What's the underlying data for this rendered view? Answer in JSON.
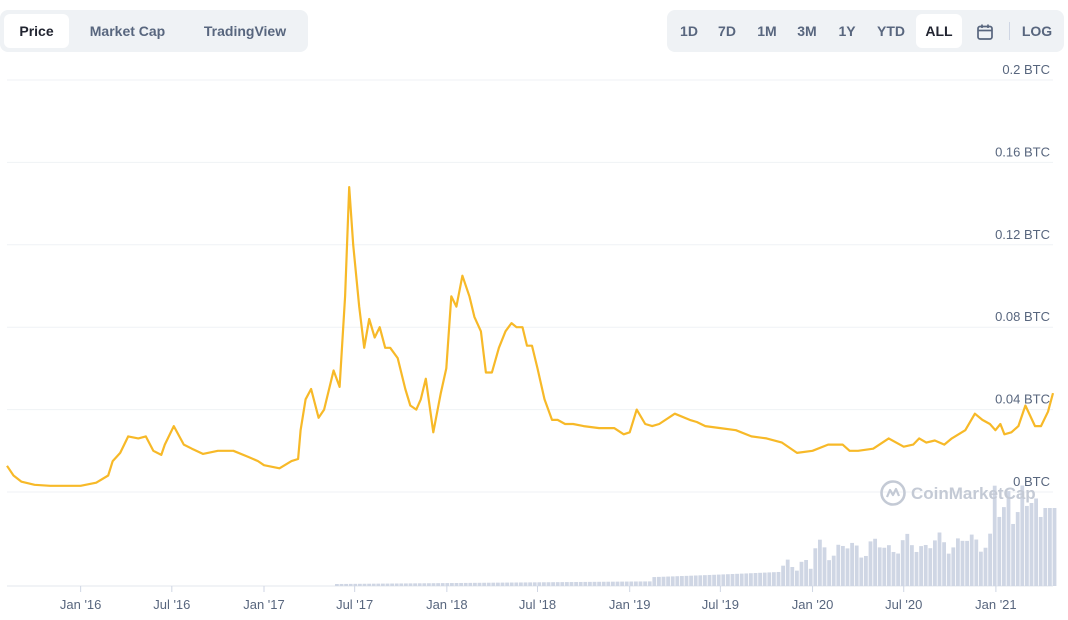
{
  "tabs": [
    "Price",
    "Market Cap",
    "TradingView"
  ],
  "active_tab": "Price",
  "ranges": [
    "1D",
    "7D",
    "1M",
    "3M",
    "1Y",
    "YTD",
    "ALL"
  ],
  "active_range": "ALL",
  "log_label": "LOG",
  "calendar_icon": "calendar-icon",
  "watermark": "CoinMarketCap",
  "colors": {
    "line": "#f7b928",
    "volume": "#cfd6e4",
    "grid": "#eff2f5",
    "text": "#58667e"
  },
  "chart_data": {
    "type": "line",
    "title": "",
    "xlabel": "",
    "ylabel": "",
    "y_unit": "BTC",
    "ylim": [
      0,
      0.2
    ],
    "yticks": [
      0,
      0.04,
      0.08,
      0.12,
      0.16,
      0.2
    ],
    "ytick_labels": [
      "0 BTC",
      "0.04 BTC",
      "0.08 BTC",
      "0.12 BTC",
      "0.16 BTC",
      "0.2 BTC"
    ],
    "xlim": [
      "2015-08-07",
      "2021-04-25"
    ],
    "xticks": [
      "2016-01-01",
      "2016-07-01",
      "2017-01-01",
      "2017-07-01",
      "2018-01-01",
      "2018-07-01",
      "2019-01-01",
      "2019-07-01",
      "2020-01-01",
      "2020-07-01",
      "2021-01-01"
    ],
    "xtick_labels": [
      "Jan '16",
      "Jul '16",
      "Jan '17",
      "Jul '17",
      "Jan '18",
      "Jul '18",
      "Jan '19",
      "Jul '19",
      "Jan '20",
      "Jul '20",
      "Jan '21"
    ],
    "grid": true,
    "series": [
      {
        "x": [
          "2015-08-07",
          "2015-08-20",
          "2015-09-05",
          "2015-10-01",
          "2015-11-01",
          "2015-12-01",
          "2016-01-01",
          "2016-02-01",
          "2016-02-25",
          "2016-03-05",
          "2016-03-20",
          "2016-04-05",
          "2016-04-25",
          "2016-05-10",
          "2016-05-25",
          "2016-06-10",
          "2016-06-17",
          "2016-07-05",
          "2016-07-25",
          "2016-08-10",
          "2016-09-01",
          "2016-10-01",
          "2016-11-01",
          "2016-12-01",
          "2016-12-20",
          "2017-01-01",
          "2017-02-01",
          "2017-02-25",
          "2017-03-10",
          "2017-03-15",
          "2017-03-25",
          "2017-04-05",
          "2017-04-20",
          "2017-05-01",
          "2017-05-20",
          "2017-06-01",
          "2017-06-12",
          "2017-06-20",
          "2017-06-28",
          "2017-07-10",
          "2017-07-20",
          "2017-07-30",
          "2017-08-10",
          "2017-08-20",
          "2017-08-31",
          "2017-09-10",
          "2017-09-25",
          "2017-10-10",
          "2017-10-20",
          "2017-11-01",
          "2017-11-10",
          "2017-11-20",
          "2017-12-05",
          "2017-12-20",
          "2017-12-31",
          "2018-01-10",
          "2018-01-20",
          "2018-02-01",
          "2018-02-15",
          "2018-02-25",
          "2018-03-10",
          "2018-03-20",
          "2018-04-01",
          "2018-04-15",
          "2018-04-28",
          "2018-05-10",
          "2018-05-20",
          "2018-06-01",
          "2018-06-10",
          "2018-06-20",
          "2018-07-01",
          "2018-07-15",
          "2018-07-30",
          "2018-08-10",
          "2018-08-25",
          "2018-09-10",
          "2018-10-01",
          "2018-11-01",
          "2018-12-01",
          "2018-12-20",
          "2019-01-01",
          "2019-01-15",
          "2019-02-01",
          "2019-02-15",
          "2019-03-01",
          "2019-04-01",
          "2019-05-01",
          "2019-05-15",
          "2019-06-01",
          "2019-07-01",
          "2019-08-01",
          "2019-09-01",
          "2019-10-01",
          "2019-11-01",
          "2019-12-01",
          "2020-01-01",
          "2020-02-01",
          "2020-03-01",
          "2020-03-15",
          "2020-04-01",
          "2020-05-01",
          "2020-06-01",
          "2020-07-01",
          "2020-07-20",
          "2020-08-01",
          "2020-08-15",
          "2020-09-01",
          "2020-09-20",
          "2020-10-05",
          "2020-11-01",
          "2020-11-20",
          "2020-12-05",
          "2020-12-20",
          "2020-12-31",
          "2021-01-10",
          "2021-01-18",
          "2021-02-01",
          "2021-02-15",
          "2021-03-01",
          "2021-03-20",
          "2021-04-01",
          "2021-04-15",
          "2021-04-25"
        ],
        "y": [
          0.0127,
          0.008,
          0.005,
          0.0035,
          0.003,
          0.003,
          0.003,
          0.0045,
          0.008,
          0.015,
          0.019,
          0.027,
          0.026,
          0.027,
          0.02,
          0.018,
          0.023,
          0.032,
          0.023,
          0.021,
          0.0185,
          0.02,
          0.02,
          0.017,
          0.015,
          0.013,
          0.0115,
          0.015,
          0.016,
          0.03,
          0.045,
          0.05,
          0.036,
          0.04,
          0.059,
          0.051,
          0.095,
          0.148,
          0.12,
          0.09,
          0.07,
          0.084,
          0.075,
          0.08,
          0.07,
          0.07,
          0.065,
          0.05,
          0.042,
          0.04,
          0.045,
          0.055,
          0.029,
          0.048,
          0.06,
          0.095,
          0.09,
          0.105,
          0.095,
          0.085,
          0.078,
          0.058,
          0.058,
          0.07,
          0.078,
          0.082,
          0.08,
          0.08,
          0.071,
          0.071,
          0.06,
          0.045,
          0.035,
          0.035,
          0.033,
          0.033,
          0.032,
          0.031,
          0.031,
          0.028,
          0.029,
          0.04,
          0.033,
          0.032,
          0.033,
          0.038,
          0.035,
          0.034,
          0.032,
          0.031,
          0.03,
          0.027,
          0.026,
          0.024,
          0.019,
          0.02,
          0.023,
          0.023,
          0.02,
          0.02,
          0.021,
          0.026,
          0.022,
          0.023,
          0.026,
          0.024,
          0.025,
          0.023,
          0.026,
          0.03,
          0.038,
          0.035,
          0.033,
          0.03,
          0.033,
          0.028,
          0.029,
          0.032,
          0.042,
          0.032,
          0.032,
          0.039,
          0.048
        ]
      }
    ],
    "volume_bars_shown": true
  }
}
